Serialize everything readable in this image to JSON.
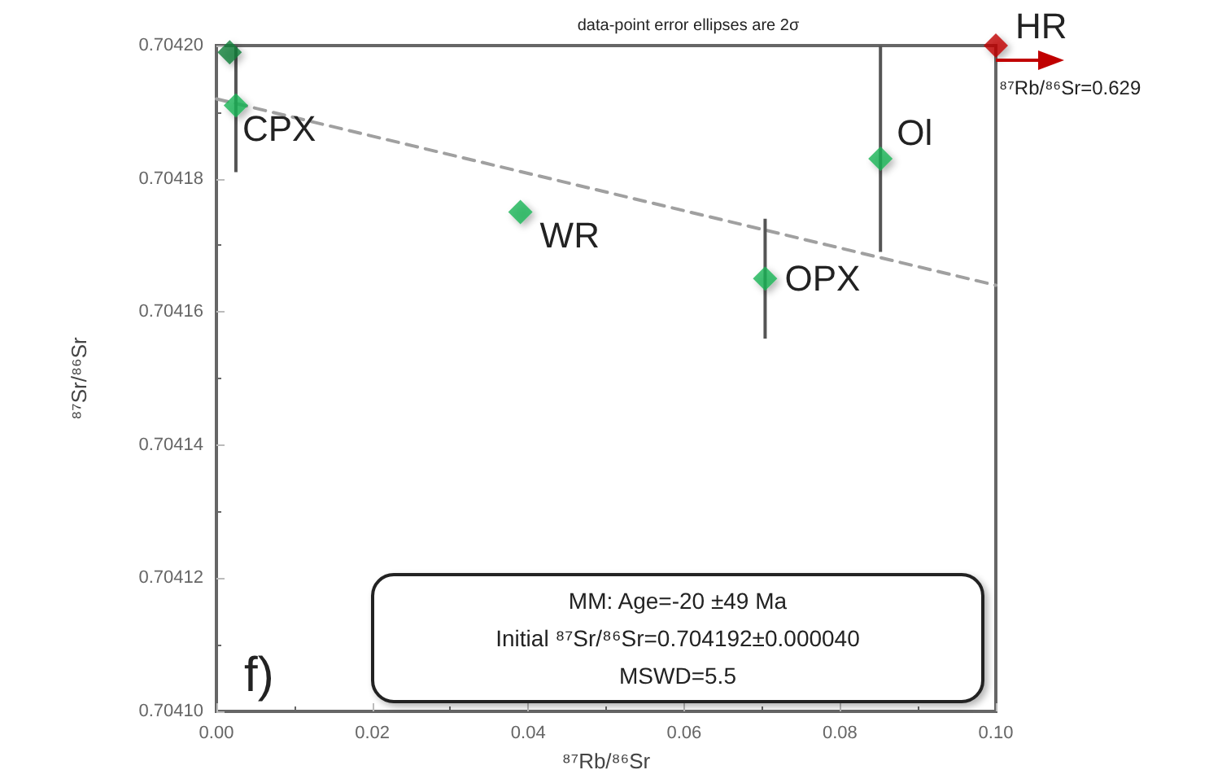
{
  "chart_data": {
    "type": "scatter",
    "xlabel": "⁸⁷Rb/⁸⁶Sr",
    "ylabel": "⁸⁷Sr/⁸⁶Sr",
    "xlim": [
      0,
      0.1
    ],
    "xticks": [
      {
        "value": 0,
        "label": "0.00"
      },
      {
        "value": 0.02,
        "label": "0.02"
      },
      {
        "value": 0.04,
        "label": "0.04"
      },
      {
        "value": 0.06,
        "label": "0.06"
      },
      {
        "value": 0.08,
        "label": "0.08"
      },
      {
        "value": 0.1,
        "label": "0.10"
      }
    ],
    "ylim": [
      0.7041,
      0.7042
    ],
    "yticks": [
      {
        "value": 0.7041,
        "label": "0.70410"
      },
      {
        "value": 0.70412,
        "label": "0.70412"
      },
      {
        "value": 0.70414,
        "label": "0.70414"
      },
      {
        "value": 0.70416,
        "label": "0.70416"
      },
      {
        "value": 0.70418,
        "label": "0.70418"
      },
      {
        "value": 0.7042,
        "label": "0.70420"
      }
    ],
    "grid": false,
    "marker": "diamond",
    "series": [
      {
        "x": [
          0.0017,
          0.0025,
          0.039,
          0.0704,
          0.0852
        ],
        "values": [
          0.704199,
          0.704191,
          0.704175,
          0.704165,
          0.704183
        ],
        "colors": [
          "#0e7d3a",
          "#1db455",
          "#1db455",
          "#1db455",
          "#1db455"
        ],
        "errors": [
          null,
          [
            0.704181,
            0.7042
          ],
          null,
          [
            0.704156,
            0.704174
          ],
          [
            0.704169,
            0.7042
          ]
        ]
      },
      {
        "x": [
          0.1
        ],
        "values": [
          0.7042
        ],
        "color": "#c00000"
      },
      {
        "type": "line",
        "x": [
          0,
          0.1
        ],
        "values": [
          0.704192,
          0.704164
        ],
        "color": "#a0a0a0",
        "line_style": "dashed",
        "marker": "none"
      }
    ],
    "annotations": [
      {
        "text": "CPX",
        "x": 0.0025,
        "y": 0.704191
      },
      {
        "text": "WR",
        "x": 0.039,
        "y": 0.704175
      },
      {
        "text": "OPX",
        "x": 0.0704,
        "y": 0.704165
      },
      {
        "text": "Ol",
        "x": 0.0852,
        "y": 0.704183
      },
      {
        "text": "HR",
        "x": 0.1,
        "y": 0.7042
      },
      {
        "text": "⁸⁷Rb/⁸⁶Sr=0.629",
        "x": 0.1,
        "y": 0.7042
      },
      "data-point error ellipses are 2σ",
      "f)",
      "MM: Age=-20 ±49 Ma",
      "Initial ⁸⁷Sr/⁸⁶Sr=0.704192±0.000040",
      "MSWD=5.5"
    ]
  }
}
